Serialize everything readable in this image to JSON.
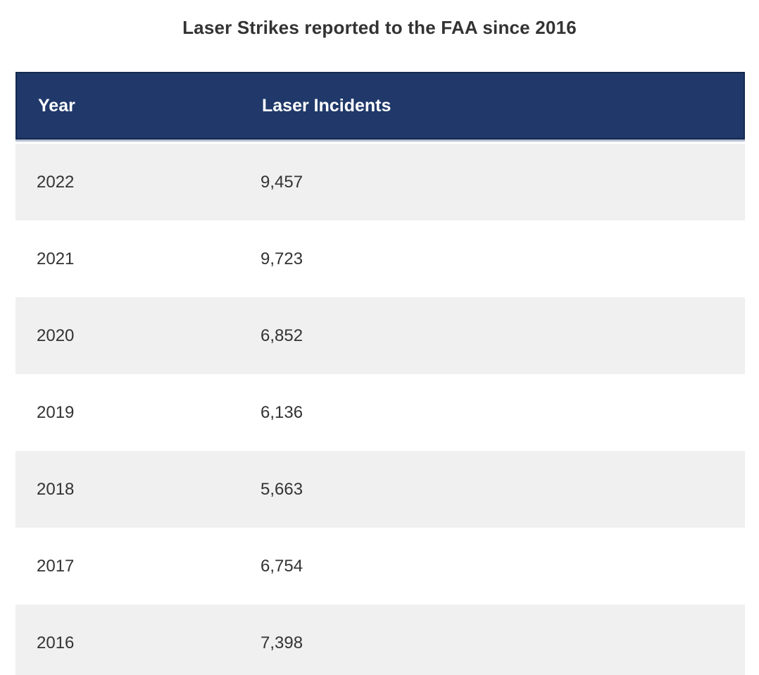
{
  "title": "Laser Strikes reported to the FAA since 2016",
  "table": {
    "columns": {
      "year": "Year",
      "incidents": "Laser Incidents"
    },
    "rows": [
      {
        "year": "2022",
        "incidents": "9,457"
      },
      {
        "year": "2021",
        "incidents": "9,723"
      },
      {
        "year": "2020",
        "incidents": "6,852"
      },
      {
        "year": "2019",
        "incidents": "6,136"
      },
      {
        "year": "2018",
        "incidents": "5,663"
      },
      {
        "year": "2017",
        "incidents": "6,754"
      },
      {
        "year": "2016",
        "incidents": "7,398"
      }
    ]
  },
  "colors": {
    "header_bg": "#20396a",
    "header_border": "#15294d",
    "header_text": "#ffffff",
    "row_alt_bg": "#f0f0f0",
    "row_text": "#333333",
    "title_text": "#333333"
  },
  "chart_data": {
    "type": "table",
    "title": "Laser Strikes reported to the FAA since 2016",
    "columns": [
      "Year",
      "Laser Incidents"
    ],
    "categories": [
      "2022",
      "2021",
      "2020",
      "2019",
      "2018",
      "2017",
      "2016"
    ],
    "values": [
      9457,
      9723,
      6852,
      6136,
      5663,
      6754,
      7398
    ],
    "layout_hints": {
      "zebra_striping": true,
      "header_style": "navy-bold-white",
      "first_row_shaded": true
    }
  }
}
